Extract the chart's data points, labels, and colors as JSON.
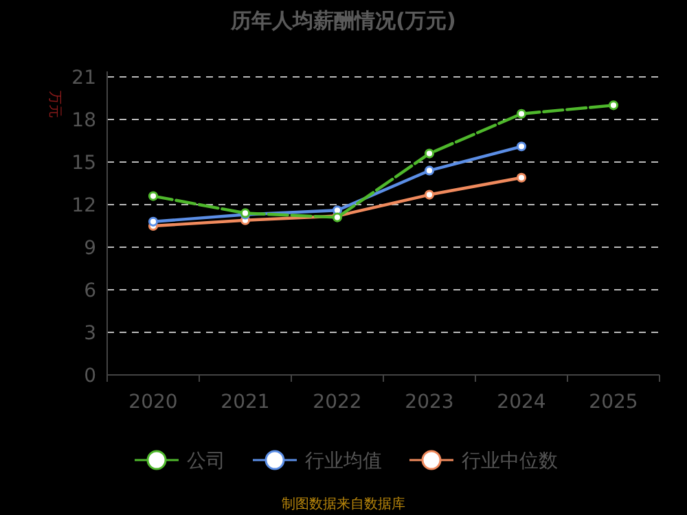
{
  "chart_data": {
    "type": "line",
    "title": "历年人均薪酬情况(万元)",
    "ylabel": "万元",
    "categories": [
      "2020",
      "2021",
      "2022",
      "2023",
      "2024",
      "2025"
    ],
    "series": [
      {
        "name": "公司",
        "color": "#4fb82c",
        "line_style": "dashed",
        "values": [
          12.6,
          11.4,
          11.1,
          15.6,
          18.4,
          19.0
        ]
      },
      {
        "name": "行业均值",
        "color": "#5b8ee6",
        "values": [
          10.8,
          11.3,
          11.6,
          14.4,
          16.1,
          null
        ]
      },
      {
        "name": "行业中位数",
        "color": "#f08a5d",
        "values": [
          10.5,
          10.9,
          11.2,
          12.7,
          13.9,
          null
        ]
      }
    ],
    "ylim": [
      0,
      21
    ],
    "yticks": [
      0,
      3,
      6,
      9,
      12,
      15,
      18,
      21
    ],
    "grid": "y",
    "legend": "bottom",
    "marker": "circle",
    "line_style": "solid",
    "annotations": [
      "制图数据来自数据库"
    ]
  }
}
